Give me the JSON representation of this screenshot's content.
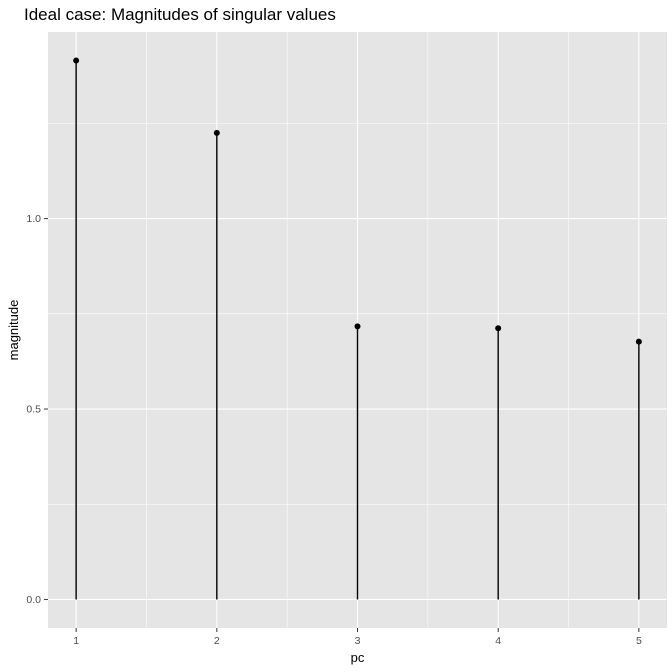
{
  "chart_data": {
    "type": "lollipop",
    "title": "Ideal case: Magnitudes of singular values",
    "xlabel": "pc",
    "ylabel": "magnitude",
    "x": [
      1,
      2,
      3,
      4,
      5
    ],
    "values": [
      1.415,
      1.225,
      0.717,
      0.712,
      0.677
    ],
    "xticks": [
      "1",
      "2",
      "3",
      "4",
      "5"
    ],
    "yticks": [
      0.0,
      0.5,
      1.0
    ],
    "ytick_labels": [
      "0.0",
      "0.5",
      "1.0"
    ],
    "xlim": [
      0.8,
      5.2
    ],
    "ylim": [
      -0.075,
      1.49
    ],
    "panel_background": "#e5e5e5",
    "grid_color": "#ffffff",
    "mark_color": "#000000",
    "grid": true
  }
}
